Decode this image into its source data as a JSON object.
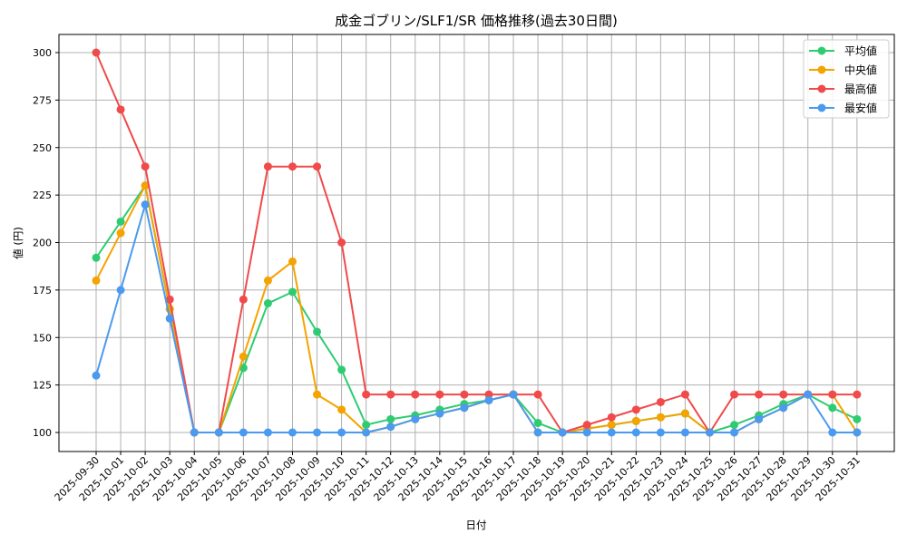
{
  "chart_data": {
    "type": "line",
    "title": "成金ゴブリン/SLF1/SR 価格推移(過去30日間)",
    "xlabel": "日付",
    "ylabel": "値 (円)",
    "ylim": [
      90,
      310
    ],
    "yticks": [
      100,
      125,
      150,
      175,
      200,
      225,
      250,
      275,
      300
    ],
    "grid": true,
    "legend_position": "upper right",
    "x": [
      "2025-09-30",
      "2025-10-01",
      "2025-10-02",
      "2025-10-03",
      "2025-10-04",
      "2025-10-05",
      "2025-10-06",
      "2025-10-07",
      "2025-10-08",
      "2025-10-09",
      "2025-10-10",
      "2025-10-11",
      "2025-10-12",
      "2025-10-13",
      "2025-10-14",
      "2025-10-15",
      "2025-10-16",
      "2025-10-17",
      "2025-10-18",
      "2025-10-19",
      "2025-10-20",
      "2025-10-21",
      "2025-10-22",
      "2025-10-23",
      "2025-10-24",
      "2025-10-25",
      "2025-10-26",
      "2025-10-27",
      "2025-10-28",
      "2025-10-29",
      "2025-10-30",
      "2025-10-31"
    ],
    "series": [
      {
        "name": "平均値",
        "color": "#2ecc71",
        "values": [
          192,
          211,
          230,
          165,
          100,
          100,
          134,
          168,
          174,
          153,
          133,
          104,
          107,
          109,
          112,
          115,
          117,
          120,
          105,
          100,
          102,
          104,
          106,
          108,
          110,
          100,
          104,
          109,
          115,
          120,
          113,
          107
        ]
      },
      {
        "name": "中央値",
        "color": "#f5a300",
        "values": [
          180,
          205,
          230,
          165,
          100,
          100,
          140,
          180,
          190,
          120,
          112,
          100,
          103,
          107,
          110,
          113,
          117,
          120,
          100,
          100,
          102,
          104,
          106,
          108,
          110,
          100,
          100,
          107,
          113,
          120,
          120,
          100
        ]
      },
      {
        "name": "最高値",
        "color": "#f04a4a",
        "values": [
          300,
          270,
          240,
          170,
          100,
          100,
          170,
          240,
          240,
          240,
          200,
          120,
          120,
          120,
          120,
          120,
          120,
          120,
          120,
          100,
          104,
          108,
          112,
          116,
          120,
          100,
          120,
          120,
          120,
          120,
          120,
          120
        ]
      },
      {
        "name": "最安値",
        "color": "#4a9af0",
        "values": [
          130,
          175,
          220,
          160,
          100,
          100,
          100,
          100,
          100,
          100,
          100,
          100,
          103,
          107,
          110,
          113,
          117,
          120,
          100,
          100,
          100,
          100,
          100,
          100,
          100,
          100,
          100,
          107,
          113,
          120,
          100,
          100
        ]
      }
    ]
  }
}
